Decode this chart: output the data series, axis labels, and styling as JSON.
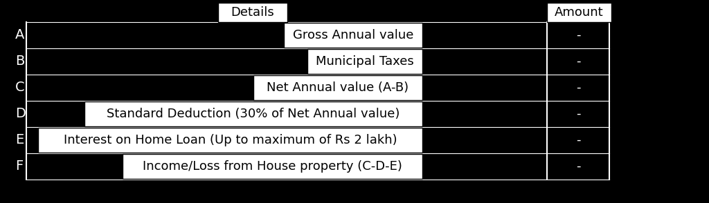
{
  "title_details": "Details",
  "title_amount": "Amount",
  "rows": [
    {
      "label": "A",
      "detail": "Gross Annual value",
      "amount": "-"
    },
    {
      "label": "B",
      "detail": "Municipal Taxes",
      "amount": "-"
    },
    {
      "label": "C",
      "detail": "Net Annual value (A-B)",
      "amount": "-"
    },
    {
      "label": "D",
      "detail": "Standard Deduction (30% of Net Annual value)",
      "amount": "-"
    },
    {
      "label": "E",
      "detail": "Interest on Home Loan (Up to maximum of Rs 2 lakh)",
      "amount": "-"
    },
    {
      "label": "F",
      "detail": "Income/Loss from House property (C-D-E)",
      "amount": "-"
    }
  ],
  "bg_color": "#000000",
  "text_color": "#000000",
  "white": "#ffffff",
  "box_edge": "#000000",
  "font_size": 13,
  "header_font_size": 13,
  "label_font_size": 14
}
